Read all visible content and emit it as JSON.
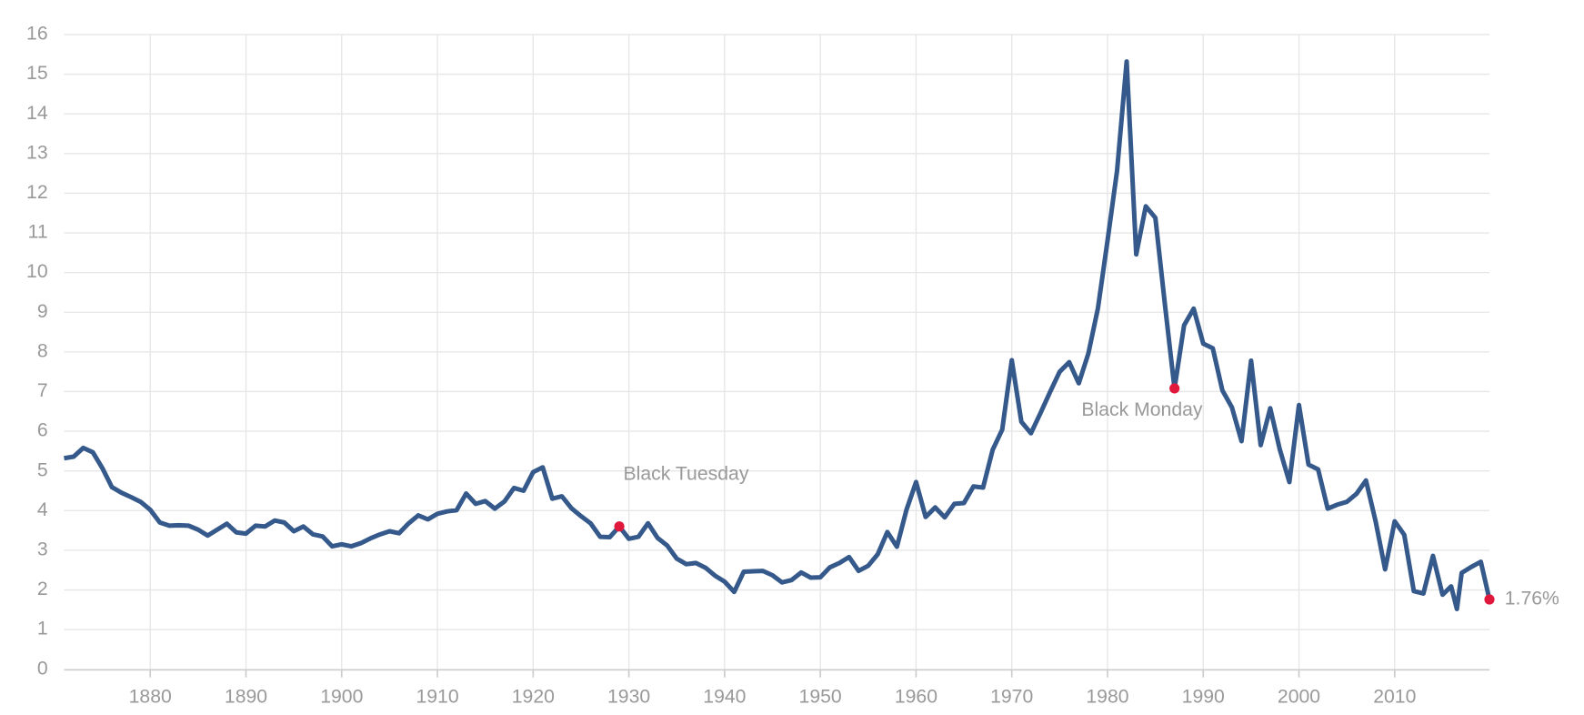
{
  "chart_data": {
    "type": "line",
    "x": [
      1871,
      1872,
      1873,
      1874,
      1875,
      1876,
      1877,
      1878,
      1879,
      1880,
      1881,
      1882,
      1883,
      1884,
      1885,
      1886,
      1887,
      1888,
      1889,
      1890,
      1891,
      1892,
      1893,
      1894,
      1895,
      1896,
      1897,
      1898,
      1899,
      1900,
      1901,
      1902,
      1903,
      1904,
      1905,
      1906,
      1907,
      1908,
      1909,
      1910,
      1911,
      1912,
      1913,
      1914,
      1915,
      1916,
      1917,
      1918,
      1919,
      1920,
      1921,
      1922,
      1923,
      1924,
      1925,
      1926,
      1927,
      1928,
      1929,
      1930,
      1931,
      1932,
      1933,
      1934,
      1935,
      1936,
      1937,
      1938,
      1939,
      1940,
      1941,
      1942,
      1943,
      1944,
      1945,
      1946,
      1947,
      1948,
      1949,
      1950,
      1951,
      1952,
      1953,
      1954,
      1955,
      1956,
      1957,
      1958,
      1959,
      1960,
      1961,
      1962,
      1963,
      1964,
      1965,
      1966,
      1967,
      1968,
      1969,
      1970,
      1971,
      1972,
      1973,
      1974,
      1975,
      1976,
      1977,
      1978,
      1979,
      1980,
      1981,
      1982,
      1983,
      1984,
      1985,
      1986,
      1987,
      1988,
      1989,
      1990,
      1991,
      1992,
      1993,
      1994,
      1995,
      1996,
      1997,
      1998,
      1999,
      2000,
      2001,
      2002,
      2003,
      2004,
      2005,
      2006,
      2007,
      2008,
      2009,
      2010,
      2011,
      2012,
      2013,
      2014,
      2015,
      2015.9,
      2016.5,
      2017,
      2018,
      2019,
      2019.9
    ],
    "series": [
      {
        "color": "#34598a",
        "values": [
          5.32,
          5.36,
          5.58,
          5.47,
          5.07,
          4.59,
          4.45,
          4.34,
          4.22,
          4.02,
          3.7,
          3.62,
          3.63,
          3.62,
          3.52,
          3.37,
          3.52,
          3.67,
          3.45,
          3.42,
          3.62,
          3.6,
          3.75,
          3.7,
          3.48,
          3.6,
          3.4,
          3.35,
          3.1,
          3.15,
          3.1,
          3.18,
          3.3,
          3.4,
          3.48,
          3.43,
          3.68,
          3.88,
          3.78,
          3.92,
          3.98,
          4.01,
          4.43,
          4.17,
          4.24,
          4.05,
          4.23,
          4.57,
          4.5,
          4.97,
          5.09,
          4.3,
          4.36,
          4.06,
          3.86,
          3.68,
          3.34,
          3.33,
          3.6,
          3.29,
          3.34,
          3.68,
          3.31,
          3.12,
          2.79,
          2.65,
          2.68,
          2.56,
          2.36,
          2.21,
          1.95,
          2.46,
          2.47,
          2.48,
          2.37,
          2.19,
          2.25,
          2.44,
          2.31,
          2.32,
          2.57,
          2.68,
          2.83,
          2.48,
          2.61,
          2.9,
          3.46,
          3.09,
          4.02,
          4.72,
          3.84,
          4.08,
          3.83,
          4.17,
          4.19,
          4.61,
          4.58,
          5.53,
          6.04,
          7.79,
          6.24,
          5.95,
          6.46,
          6.99,
          7.5,
          7.74,
          7.21,
          7.96,
          9.1,
          10.8,
          12.57,
          15.32,
          10.46,
          11.67,
          11.38,
          9.19,
          7.08,
          8.67,
          9.09,
          8.21,
          8.09,
          7.03,
          6.6,
          5.75,
          7.78,
          5.65,
          6.58,
          5.54,
          4.72,
          6.66,
          5.16,
          5.04,
          4.05,
          4.15,
          4.22,
          4.42,
          4.76,
          3.74,
          2.52,
          3.73,
          3.39,
          1.97,
          1.91,
          2.86,
          1.88,
          2.09,
          1.52,
          2.43,
          2.58,
          2.71,
          1.76
        ]
      }
    ],
    "xlim": [
      1871,
      2019.9
    ],
    "ylim": [
      0,
      16
    ],
    "xticks": [
      1880,
      1890,
      1900,
      1910,
      1920,
      1930,
      1940,
      1950,
      1960,
      1970,
      1980,
      1990,
      2000,
      2010
    ],
    "yticks": [
      0,
      1,
      2,
      3,
      4,
      5,
      6,
      7,
      8,
      9,
      10,
      11,
      12,
      13,
      14,
      15,
      16
    ],
    "grid": true,
    "highlight_color": "#e0183c",
    "annotations": [
      {
        "label": "Black Tuesday",
        "x": 1929
      },
      {
        "label": "Black Monday",
        "x": 1987
      }
    ],
    "last_value_label": "1.76%"
  }
}
